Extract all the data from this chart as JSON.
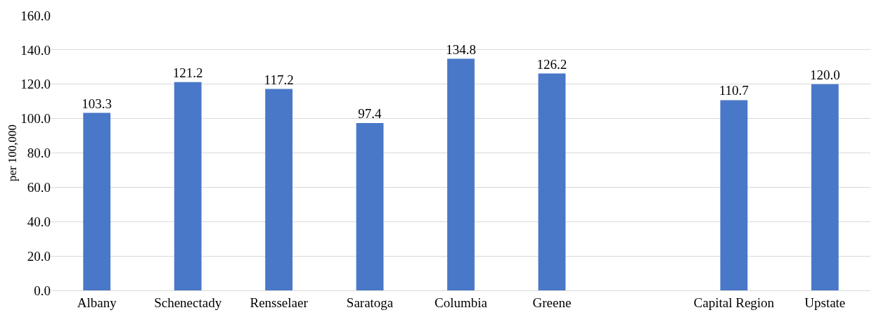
{
  "chart_data": {
    "type": "bar",
    "ylabel": "per 100,000",
    "categories": [
      "Albany",
      "Schenectady",
      "Rensselaer",
      "Saratoga",
      "Columbia",
      "Greene",
      null,
      "Capital Region",
      "Upstate"
    ],
    "values": [
      103.3,
      121.2,
      117.2,
      97.4,
      134.8,
      126.2,
      null,
      110.7,
      120.0
    ],
    "value_labels": [
      "103.3",
      "121.2",
      "117.2",
      "97.4",
      "134.8",
      "126.2",
      null,
      "110.7",
      "120.0"
    ],
    "color": "#4a78c8",
    "ylim": [
      0,
      160
    ],
    "yticks": [
      {
        "value": 0,
        "label": "0.0"
      },
      {
        "value": 20,
        "label": "20.0"
      },
      {
        "value": 40,
        "label": "40.0"
      },
      {
        "value": 60,
        "label": "60.0"
      },
      {
        "value": 80,
        "label": "80.0"
      },
      {
        "value": 100,
        "label": "100.0"
      },
      {
        "value": 120,
        "label": "120.0"
      },
      {
        "value": 140,
        "label": "140.0"
      },
      {
        "value": 160,
        "label": "160.0"
      }
    ],
    "grid": "y"
  }
}
